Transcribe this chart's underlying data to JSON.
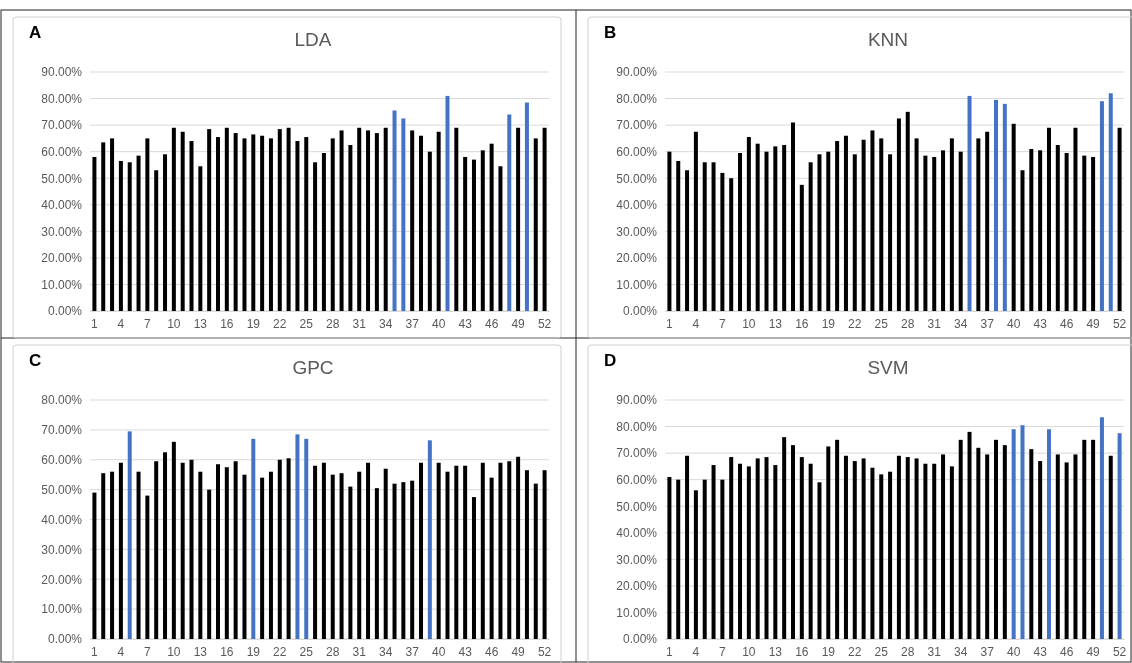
{
  "chart_data": [
    {
      "type": "bar",
      "title": "LDA",
      "annotations": [
        "A"
      ],
      "categories": [
        "1",
        null,
        null,
        "4",
        null,
        null,
        "7",
        null,
        null,
        "10",
        null,
        null,
        "13",
        null,
        null,
        "16",
        null,
        null,
        "19",
        null,
        null,
        "22",
        null,
        null,
        "25",
        null,
        null,
        "28",
        null,
        null,
        "31",
        null,
        null,
        "34",
        null,
        null,
        "37",
        null,
        null,
        "40",
        null,
        null,
        "43",
        null,
        null,
        "46",
        null,
        null,
        "49",
        null,
        null,
        "52"
      ],
      "values": [
        58,
        63.5,
        65,
        56.5,
        56,
        58.5,
        65,
        53,
        59,
        69,
        67.5,
        64,
        54.5,
        68.5,
        65.5,
        69,
        67,
        65,
        66.5,
        66,
        65,
        68.5,
        69,
        64,
        65.5,
        56,
        59.5,
        65,
        68,
        62.5,
        69,
        68,
        67,
        69,
        75.5,
        72.5,
        68,
        66,
        60,
        67.5,
        81,
        69,
        58,
        57,
        60.5,
        63,
        54.5,
        74,
        69,
        78.5,
        65,
        69
      ],
      "colors": [
        "#000000",
        "#000000",
        "#000000",
        "#000000",
        "#000000",
        "#000000",
        "#000000",
        "#000000",
        "#000000",
        "#000000",
        "#000000",
        "#000000",
        "#000000",
        "#000000",
        "#000000",
        "#000000",
        "#000000",
        "#000000",
        "#000000",
        "#000000",
        "#000000",
        "#000000",
        "#000000",
        "#000000",
        "#000000",
        "#000000",
        "#000000",
        "#000000",
        "#000000",
        "#000000",
        "#000000",
        "#000000",
        "#000000",
        "#000000",
        "#4472c4",
        "#4472c4",
        "#000000",
        "#000000",
        "#000000",
        "#000000",
        "#4472c4",
        "#000000",
        "#000000",
        "#000000",
        "#000000",
        "#000000",
        "#000000",
        "#4472c4",
        "#000000",
        "#4472c4",
        "#000000",
        "#000000"
      ],
      "ylim": [
        0,
        90
      ],
      "yticks": [
        {
          "value": 0,
          "label": "0.00%"
        },
        {
          "value": 10,
          "label": "10.00%"
        },
        {
          "value": 20,
          "label": "20.00%"
        },
        {
          "value": 30,
          "label": "30.00%"
        },
        {
          "value": 40,
          "label": "40.00%"
        },
        {
          "value": 50,
          "label": "50.00%"
        },
        {
          "value": 60,
          "label": "60.00%"
        },
        {
          "value": 70,
          "label": "70.00%"
        },
        {
          "value": 80,
          "label": "80.00%"
        },
        {
          "value": 90,
          "label": "90.00%"
        }
      ],
      "grid": "y"
    },
    {
      "type": "bar",
      "title": "KNN",
      "annotations": [
        "B"
      ],
      "categories": [
        "1",
        null,
        null,
        "4",
        null,
        null,
        "7",
        null,
        null,
        "10",
        null,
        null,
        "13",
        null,
        null,
        "16",
        null,
        null,
        "19",
        null,
        null,
        "22",
        null,
        null,
        "25",
        null,
        null,
        "28",
        null,
        null,
        "31",
        null,
        null,
        "34",
        null,
        null,
        "37",
        null,
        null,
        "40",
        null,
        null,
        "43",
        null,
        null,
        "46",
        null,
        null,
        "49",
        null,
        null,
        "52"
      ],
      "values": [
        60,
        56.5,
        53,
        67.5,
        56,
        56,
        52,
        50,
        59.5,
        65.5,
        63,
        60,
        62,
        62.5,
        71,
        47.5,
        56,
        59,
        60,
        64,
        66,
        59,
        64.5,
        68,
        65,
        59,
        72.5,
        75,
        65,
        58.5,
        58,
        60.5,
        65,
        60,
        81,
        65,
        67.5,
        79.5,
        78,
        70.5,
        53,
        61,
        60.5,
        69,
        62.5,
        59.5,
        69,
        58.5,
        58,
        79,
        82,
        69
      ],
      "colors": [
        "#000000",
        "#000000",
        "#000000",
        "#000000",
        "#000000",
        "#000000",
        "#000000",
        "#000000",
        "#000000",
        "#000000",
        "#000000",
        "#000000",
        "#000000",
        "#000000",
        "#000000",
        "#000000",
        "#000000",
        "#000000",
        "#000000",
        "#000000",
        "#000000",
        "#000000",
        "#000000",
        "#000000",
        "#000000",
        "#000000",
        "#000000",
        "#000000",
        "#000000",
        "#000000",
        "#000000",
        "#000000",
        "#000000",
        "#000000",
        "#4472c4",
        "#000000",
        "#000000",
        "#4472c4",
        "#4472c4",
        "#000000",
        "#000000",
        "#000000",
        "#000000",
        "#000000",
        "#000000",
        "#000000",
        "#000000",
        "#000000",
        "#000000",
        "#4472c4",
        "#4472c4",
        "#000000"
      ],
      "ylim": [
        0,
        90
      ],
      "yticks": [
        {
          "value": 0,
          "label": "0.00%"
        },
        {
          "value": 10,
          "label": "10.00%"
        },
        {
          "value": 20,
          "label": "20.00%"
        },
        {
          "value": 30,
          "label": "30.00%"
        },
        {
          "value": 40,
          "label": "40.00%"
        },
        {
          "value": 50,
          "label": "50.00%"
        },
        {
          "value": 60,
          "label": "60.00%"
        },
        {
          "value": 70,
          "label": "70.00%"
        },
        {
          "value": 80,
          "label": "80.00%"
        },
        {
          "value": 90,
          "label": "90.00%"
        }
      ],
      "grid": "y"
    },
    {
      "type": "bar",
      "title": "GPC",
      "annotations": [
        "C"
      ],
      "categories": [
        "1",
        null,
        null,
        "4",
        null,
        null,
        "7",
        null,
        null,
        "10",
        null,
        null,
        "13",
        null,
        null,
        "16",
        null,
        null,
        "19",
        null,
        null,
        "22",
        null,
        null,
        "25",
        null,
        null,
        "28",
        null,
        null,
        "31",
        null,
        null,
        "34",
        null,
        null,
        "37",
        null,
        null,
        "40",
        null,
        null,
        "43",
        null,
        null,
        "46",
        null,
        null,
        "49",
        null,
        null,
        "52"
      ],
      "values": [
        49,
        55.5,
        56,
        59,
        69.5,
        56,
        48,
        59.5,
        62.5,
        66,
        59,
        60,
        56,
        50,
        58.5,
        57.5,
        59.5,
        55,
        67,
        54,
        56,
        60,
        60.5,
        68.5,
        67,
        58,
        59,
        55,
        55.5,
        51,
        56,
        59,
        50.5,
        57,
        52,
        52.5,
        53,
        59,
        66.5,
        59,
        56,
        58,
        58,
        47.5,
        59,
        54,
        59,
        59.5,
        61,
        56.5,
        52,
        56.5
      ],
      "colors": [
        "#000000",
        "#000000",
        "#000000",
        "#000000",
        "#4472c4",
        "#000000",
        "#000000",
        "#000000",
        "#000000",
        "#000000",
        "#000000",
        "#000000",
        "#000000",
        "#000000",
        "#000000",
        "#000000",
        "#000000",
        "#000000",
        "#4472c4",
        "#000000",
        "#000000",
        "#000000",
        "#000000",
        "#4472c4",
        "#4472c4",
        "#000000",
        "#000000",
        "#000000",
        "#000000",
        "#000000",
        "#000000",
        "#000000",
        "#000000",
        "#000000",
        "#000000",
        "#000000",
        "#000000",
        "#000000",
        "#4472c4",
        "#000000",
        "#000000",
        "#000000",
        "#000000",
        "#000000",
        "#000000",
        "#000000",
        "#000000",
        "#000000",
        "#000000",
        "#000000",
        "#000000",
        "#000000"
      ],
      "ylim": [
        0,
        80
      ],
      "yticks": [
        {
          "value": 0,
          "label": "0.00%"
        },
        {
          "value": 10,
          "label": "10.00%"
        },
        {
          "value": 20,
          "label": "20.00%"
        },
        {
          "value": 30,
          "label": "30.00%"
        },
        {
          "value": 40,
          "label": "40.00%"
        },
        {
          "value": 50,
          "label": "50.00%"
        },
        {
          "value": 60,
          "label": "60.00%"
        },
        {
          "value": 70,
          "label": "70.00%"
        },
        {
          "value": 80,
          "label": "80.00%"
        }
      ],
      "grid": "y"
    },
    {
      "type": "bar",
      "title": "SVM",
      "annotations": [
        "D"
      ],
      "categories": [
        "1",
        null,
        null,
        "4",
        null,
        null,
        "7",
        null,
        null,
        "10",
        null,
        null,
        "13",
        null,
        null,
        "16",
        null,
        null,
        "19",
        null,
        null,
        "22",
        null,
        null,
        "25",
        null,
        null,
        "28",
        null,
        null,
        "31",
        null,
        null,
        "34",
        null,
        null,
        "37",
        null,
        null,
        "40",
        null,
        null,
        "43",
        null,
        null,
        "46",
        null,
        null,
        "49",
        null,
        null,
        "52"
      ],
      "values": [
        61,
        60,
        69,
        56,
        60,
        65.5,
        60,
        68.5,
        66,
        65,
        68,
        68.5,
        65.5,
        76,
        73,
        68.5,
        66,
        59,
        72.5,
        75,
        69,
        67,
        68,
        64.5,
        62,
        63,
        69,
        68.5,
        68,
        66,
        66,
        69.5,
        65,
        75,
        78,
        72,
        69.5,
        75,
        73,
        79,
        80.5,
        71.5,
        67,
        79,
        69.5,
        66.5,
        69.5,
        75,
        75,
        83.5,
        69,
        77.5
      ],
      "colors": [
        "#000000",
        "#000000",
        "#000000",
        "#000000",
        "#000000",
        "#000000",
        "#000000",
        "#000000",
        "#000000",
        "#000000",
        "#000000",
        "#000000",
        "#000000",
        "#000000",
        "#000000",
        "#000000",
        "#000000",
        "#000000",
        "#000000",
        "#000000",
        "#000000",
        "#000000",
        "#000000",
        "#000000",
        "#000000",
        "#000000",
        "#000000",
        "#000000",
        "#000000",
        "#000000",
        "#000000",
        "#000000",
        "#000000",
        "#000000",
        "#000000",
        "#000000",
        "#000000",
        "#000000",
        "#000000",
        "#4472c4",
        "#4472c4",
        "#000000",
        "#000000",
        "#4472c4",
        "#000000",
        "#000000",
        "#000000",
        "#000000",
        "#000000",
        "#4472c4",
        "#000000",
        "#4472c4"
      ],
      "ylim": [
        0,
        90
      ],
      "yticks": [
        {
          "value": 0,
          "label": "0.00%"
        },
        {
          "value": 10,
          "label": "10.00%"
        },
        {
          "value": 20,
          "label": "20.00%"
        },
        {
          "value": 30,
          "label": "30.00%"
        },
        {
          "value": 40,
          "label": "40.00%"
        },
        {
          "value": 50,
          "label": "50.00%"
        },
        {
          "value": 60,
          "label": "60.00%"
        },
        {
          "value": 70,
          "label": "70.00%"
        },
        {
          "value": 80,
          "label": "80.00%"
        },
        {
          "value": 90,
          "label": "90.00%"
        }
      ],
      "grid": "y"
    }
  ]
}
